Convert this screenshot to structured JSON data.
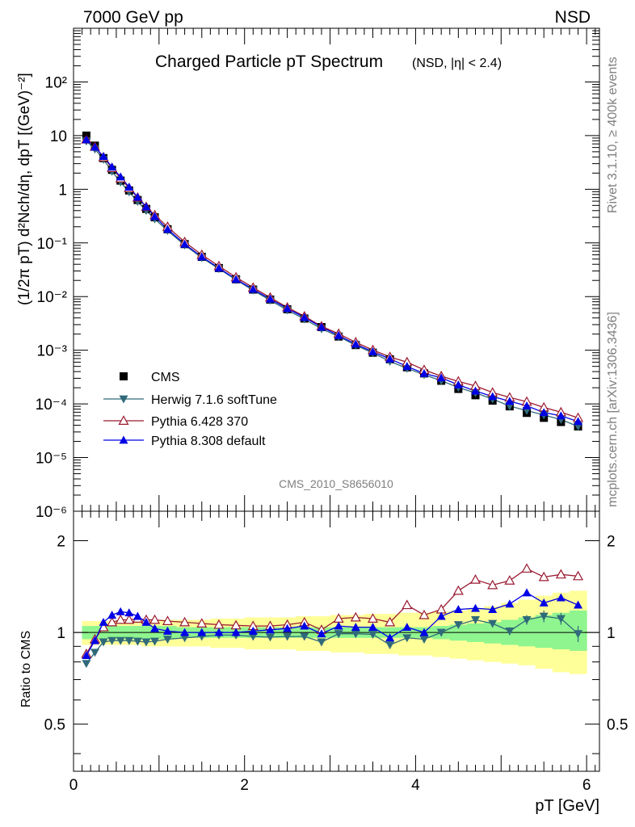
{
  "header": {
    "left": "7000 GeV pp",
    "right": "NSD",
    "side_top": "Rivet 3.1.10, ≥ 400k events",
    "side_bottom": "mcplots.cern.ch [arXiv:1306.3436]"
  },
  "chart_data": [
    {
      "type": "scatter",
      "title": "Charged Particle pT Spectrum",
      "subtitle": "(NSD, |η| < 2.4)",
      "ylabel": "(1/2π pT) d²Nch/dη, dpT [(GeV)⁻²]",
      "analysis_label": "CMS_2010_S8656010",
      "y_scale": "log",
      "xlim": [
        0,
        6.15
      ],
      "ylim": [
        1e-06,
        1000
      ],
      "y_tick_labels": [
        "10⁻⁶",
        "10⁻⁵",
        "10⁻⁴",
        "10⁻³",
        "10⁻²",
        "10⁻¹",
        "1",
        "10",
        "10²"
      ],
      "legend_position": "middle-left",
      "x": [
        0.15,
        0.25,
        0.35,
        0.45,
        0.55,
        0.65,
        0.75,
        0.85,
        0.95,
        1.1,
        1.3,
        1.5,
        1.7,
        1.9,
        2.1,
        2.3,
        2.5,
        2.7,
        2.9,
        3.1,
        3.3,
        3.5,
        3.7,
        3.9,
        4.1,
        4.3,
        4.5,
        4.7,
        4.9,
        5.1,
        5.3,
        5.5,
        5.7,
        5.9
      ],
      "series": [
        {
          "name": "CMS",
          "marker": "square",
          "color": "#000000",
          "values": [
            10,
            6.5,
            3.8,
            2.3,
            1.45,
            0.95,
            0.63,
            0.43,
            0.3,
            0.18,
            0.095,
            0.055,
            0.034,
            0.021,
            0.0135,
            0.0088,
            0.0058,
            0.0039,
            0.0027,
            0.0018,
            0.00125,
            0.0009,
            0.00068,
            0.00048,
            0.00037,
            0.00027,
            0.00019,
            0.000145,
            0.000115,
            9e-05,
            6.8e-05,
            5.5e-05,
            4.6e-05,
            3.8e-05
          ]
        },
        {
          "name": "Herwig 7.1.6 softTune",
          "marker": "triangle-down",
          "color": "#306a7a",
          "values": [
            7.9,
            5.6,
            3.6,
            2.15,
            1.36,
            0.89,
            0.59,
            0.4,
            0.28,
            0.17,
            0.091,
            0.053,
            0.033,
            0.0205,
            0.0131,
            0.0085,
            0.0056,
            0.0038,
            0.0025,
            0.0018,
            0.00124,
            0.00089,
            0.00062,
            0.00046,
            0.00035,
            0.00027,
            0.000202,
            0.00016,
            0.000123,
            9.1e-05,
            7.5e-05,
            6.2e-05,
            5.1e-05,
            3.8e-05
          ]
        },
        {
          "name": "Pythia 6.428 370",
          "marker": "triangle-up-open",
          "color": "#9a1a30",
          "values": [
            8.5,
            6.2,
            3.95,
            2.5,
            1.6,
            1.05,
            0.7,
            0.47,
            0.33,
            0.2,
            0.104,
            0.06,
            0.037,
            0.0229,
            0.0147,
            0.0096,
            0.0063,
            0.0043,
            0.0028,
            0.00203,
            0.00141,
            0.00101,
            0.00075,
            0.0006,
            0.00043,
            0.00033,
            0.000263,
            0.000216,
            0.000163,
            0.000132,
            0.00011,
            8.6e-05,
            7e-05,
            5.5e-05
          ]
        },
        {
          "name": "Pythia 8.308 default",
          "marker": "triangle-up",
          "color": "#0000e6",
          "values": [
            8.4,
            6.1,
            4.1,
            2.6,
            1.7,
            1.1,
            0.71,
            0.47,
            0.31,
            0.18,
            0.095,
            0.055,
            0.034,
            0.021,
            0.0137,
            0.009,
            0.006,
            0.0041,
            0.0027,
            0.00189,
            0.0013,
            0.00094,
            0.00069,
            0.0005,
            0.00037,
            0.000306,
            0.000227,
            0.000174,
            0.000137,
            0.000112,
            9.2e-05,
            6.9e-05,
            6e-05,
            4.7e-05
          ]
        }
      ]
    },
    {
      "type": "scatter",
      "xlabel": "pT [GeV]",
      "ylabel": "Ratio to CMS",
      "y_scale": "log",
      "xlim": [
        0,
        6.15
      ],
      "ylim": [
        0.35,
        2.5
      ],
      "x_tick_labels": [
        "0",
        "2",
        "4",
        "6"
      ],
      "y_tick_labels": [
        "0.5",
        "1",
        "2"
      ],
      "reference_line": 1,
      "x": [
        0.15,
        0.25,
        0.35,
        0.45,
        0.55,
        0.65,
        0.75,
        0.85,
        0.95,
        1.1,
        1.3,
        1.5,
        1.7,
        1.9,
        2.1,
        2.3,
        2.5,
        2.7,
        2.9,
        3.1,
        3.3,
        3.5,
        3.7,
        3.9,
        4.1,
        4.3,
        4.5,
        4.7,
        4.9,
        5.1,
        5.3,
        5.5,
        5.7,
        5.9
      ],
      "bands": {
        "x_edges": [
          0.1,
          0.2,
          0.3,
          0.4,
          0.5,
          0.6,
          0.7,
          0.8,
          0.9,
          1.0,
          1.2,
          1.4,
          1.6,
          1.8,
          2.0,
          2.2,
          2.4,
          2.6,
          2.8,
          3.0,
          3.2,
          3.4,
          3.6,
          3.8,
          4.0,
          4.2,
          4.4,
          4.6,
          4.8,
          5.0,
          5.2,
          5.4,
          5.6,
          5.8,
          6.0
        ],
        "stat_low": [
          0.95,
          0.95,
          0.95,
          0.95,
          0.95,
          0.95,
          0.95,
          0.95,
          0.95,
          0.95,
          0.96,
          0.96,
          0.96,
          0.96,
          0.96,
          0.96,
          0.96,
          0.96,
          0.96,
          0.96,
          0.96,
          0.96,
          0.96,
          0.96,
          0.96,
          0.95,
          0.94,
          0.93,
          0.92,
          0.91,
          0.9,
          0.89,
          0.88,
          0.87
        ],
        "stat_high": [
          1.05,
          1.05,
          1.05,
          1.05,
          1.05,
          1.05,
          1.05,
          1.05,
          1.05,
          1.05,
          1.04,
          1.04,
          1.04,
          1.04,
          1.04,
          1.04,
          1.04,
          1.04,
          1.04,
          1.04,
          1.04,
          1.04,
          1.04,
          1.04,
          1.04,
          1.05,
          1.06,
          1.07,
          1.08,
          1.1,
          1.12,
          1.14,
          1.16,
          1.18
        ],
        "sys_low": [
          0.91,
          0.91,
          0.91,
          0.91,
          0.91,
          0.91,
          0.91,
          0.9,
          0.9,
          0.9,
          0.9,
          0.9,
          0.89,
          0.89,
          0.88,
          0.88,
          0.88,
          0.87,
          0.87,
          0.86,
          0.86,
          0.85,
          0.85,
          0.84,
          0.84,
          0.83,
          0.82,
          0.81,
          0.8,
          0.79,
          0.78,
          0.76,
          0.74,
          0.73,
          0.73
        ],
        "sys_high": [
          1.09,
          1.09,
          1.09,
          1.09,
          1.09,
          1.09,
          1.09,
          1.1,
          1.1,
          1.1,
          1.1,
          1.1,
          1.11,
          1.11,
          1.12,
          1.12,
          1.12,
          1.13,
          1.13,
          1.14,
          1.14,
          1.15,
          1.15,
          1.16,
          1.16,
          1.17,
          1.18,
          1.2,
          1.22,
          1.25,
          1.28,
          1.32,
          1.35,
          1.37,
          1.37
        ]
      },
      "series": [
        {
          "name": "Herwig 7.1.6 softTune",
          "marker": "triangle-down",
          "color": "#306a7a",
          "values": [
            0.79,
            0.86,
            0.93,
            0.94,
            0.94,
            0.94,
            0.935,
            0.93,
            0.935,
            0.95,
            0.96,
            0.97,
            0.98,
            0.98,
            0.97,
            0.965,
            0.97,
            0.97,
            0.93,
            0.99,
            0.99,
            0.985,
            0.91,
            0.96,
            0.95,
            1.0,
            1.06,
            1.1,
            1.07,
            1.01,
            1.1,
            1.13,
            1.11,
            0.99
          ],
          "err": [
            0,
            0,
            0,
            0,
            0,
            0,
            0,
            0,
            0,
            0,
            0,
            0,
            0,
            0,
            0,
            0,
            0,
            0,
            0,
            0,
            0,
            0,
            0,
            0,
            0,
            0,
            0,
            0,
            0,
            0.03,
            0.04,
            0.05,
            0.05,
            0.06
          ]
        },
        {
          "name": "Pythia 6.428 370",
          "marker": "triangle-up-open",
          "color": "#9a1a30",
          "values": [
            0.85,
            0.95,
            1.04,
            1.08,
            1.1,
            1.1,
            1.11,
            1.1,
            1.1,
            1.09,
            1.08,
            1.07,
            1.06,
            1.055,
            1.05,
            1.05,
            1.06,
            1.08,
            1.02,
            1.11,
            1.12,
            1.11,
            1.08,
            1.23,
            1.14,
            1.19,
            1.37,
            1.49,
            1.43,
            1.48,
            1.62,
            1.52,
            1.55,
            1.53
          ]
        },
        {
          "name": "Pythia 8.308 default",
          "marker": "triangle-up",
          "color": "#0000e6",
          "values": [
            0.84,
            0.94,
            1.08,
            1.14,
            1.17,
            1.16,
            1.13,
            1.08,
            1.03,
            1.01,
            1.0,
            1.0,
            1.0,
            1.0,
            1.01,
            1.02,
            1.03,
            1.05,
            0.99,
            1.05,
            1.04,
            1.04,
            0.96,
            1.04,
            1.0,
            1.13,
            1.19,
            1.2,
            1.19,
            1.24,
            1.35,
            1.25,
            1.3,
            1.23
          ]
        }
      ]
    }
  ]
}
